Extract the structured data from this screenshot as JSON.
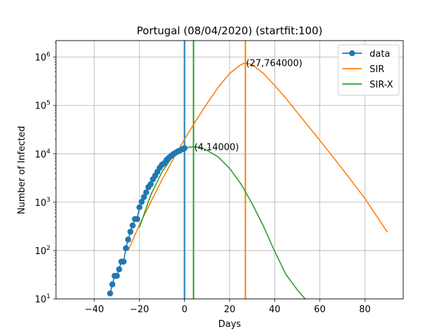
{
  "chart_data": {
    "type": "line",
    "title": "Portugal (08/04/2020) (startfit:100)",
    "xlabel": "Days",
    "ylabel": "Number of Infected",
    "xlim": [
      -57,
      97
    ],
    "ylim": [
      10,
      2200000
    ],
    "yscale": "log",
    "grid": true,
    "legend_position": "top-right",
    "x_ticks": [
      -40,
      -20,
      0,
      20,
      40,
      60,
      80
    ],
    "x_tick_labels": [
      "−40",
      "−20",
      "0",
      "20",
      "40",
      "60",
      "80"
    ],
    "y_ticks": [
      10,
      100,
      1000,
      10000,
      100000,
      1000000
    ],
    "y_tick_labels": [
      {
        "base": "10",
        "exp": "1"
      },
      {
        "base": "10",
        "exp": "2"
      },
      {
        "base": "10",
        "exp": "3"
      },
      {
        "base": "10",
        "exp": "4"
      },
      {
        "base": "10",
        "exp": "5"
      },
      {
        "base": "10",
        "exp": "6"
      }
    ],
    "series": [
      {
        "name": "data",
        "color": "#1f77b4",
        "marker": "circle",
        "x": [
          -33,
          -32,
          -31,
          -30,
          -29,
          -28,
          -27,
          -26,
          -25,
          -24,
          -23,
          -22,
          -21,
          -20,
          -19,
          -18,
          -17,
          -16,
          -15,
          -14,
          -13,
          -12,
          -11,
          -10,
          -9,
          -8,
          -7,
          -6,
          -5,
          -4,
          -3,
          -2,
          -1,
          0
        ],
        "y": [
          13,
          20,
          30,
          30,
          41,
          59,
          59,
          112,
          169,
          245,
          331,
          448,
          448,
          785,
          1020,
          1280,
          1600,
          2060,
          2362,
          2995,
          3544,
          4268,
          5170,
          5962,
          6408,
          7443,
          8251,
          9034,
          9886,
          10524,
          11278,
          11730,
          12442,
          13141
        ]
      },
      {
        "name": "SIR",
        "color": "#ff7f0e",
        "x": [
          -25,
          -20,
          -15,
          -10,
          -5,
          0,
          5,
          10,
          15,
          20,
          25,
          27,
          30,
          35,
          40,
          45,
          50,
          60,
          70,
          80,
          90
        ],
        "y": [
          100,
          340,
          1000,
          2900,
          7800,
          20000,
          48000,
          110000,
          240000,
          460000,
          700000,
          764000,
          700000,
          460000,
          260000,
          140000,
          72000,
          19000,
          4900,
          1200,
          240
        ]
      },
      {
        "name": "SIR-X",
        "color": "#2ca02c",
        "x": [
          -20,
          -15,
          -10,
          -5,
          -2,
          0,
          2,
          4,
          6,
          8,
          10,
          15,
          20,
          25,
          30,
          35,
          40,
          45,
          50,
          53.5
        ],
        "y": [
          300,
          1400,
          4200,
          9200,
          11800,
          12900,
          13700,
          14000,
          13800,
          13000,
          11800,
          8600,
          5000,
          2400,
          930,
          320,
          96,
          32,
          15.5,
          10
        ]
      }
    ],
    "vertical_lines": [
      {
        "x": 0,
        "color": "#1f77b4"
      },
      {
        "x": 4,
        "color": "#2ca02c"
      },
      {
        "x": 27,
        "color": "#ff7f0e"
      }
    ],
    "annotations": [
      {
        "text": "(27,764000)",
        "x": 27,
        "y": 764000
      },
      {
        "text": "(4,14000)",
        "x": 4,
        "y": 14000
      }
    ]
  }
}
